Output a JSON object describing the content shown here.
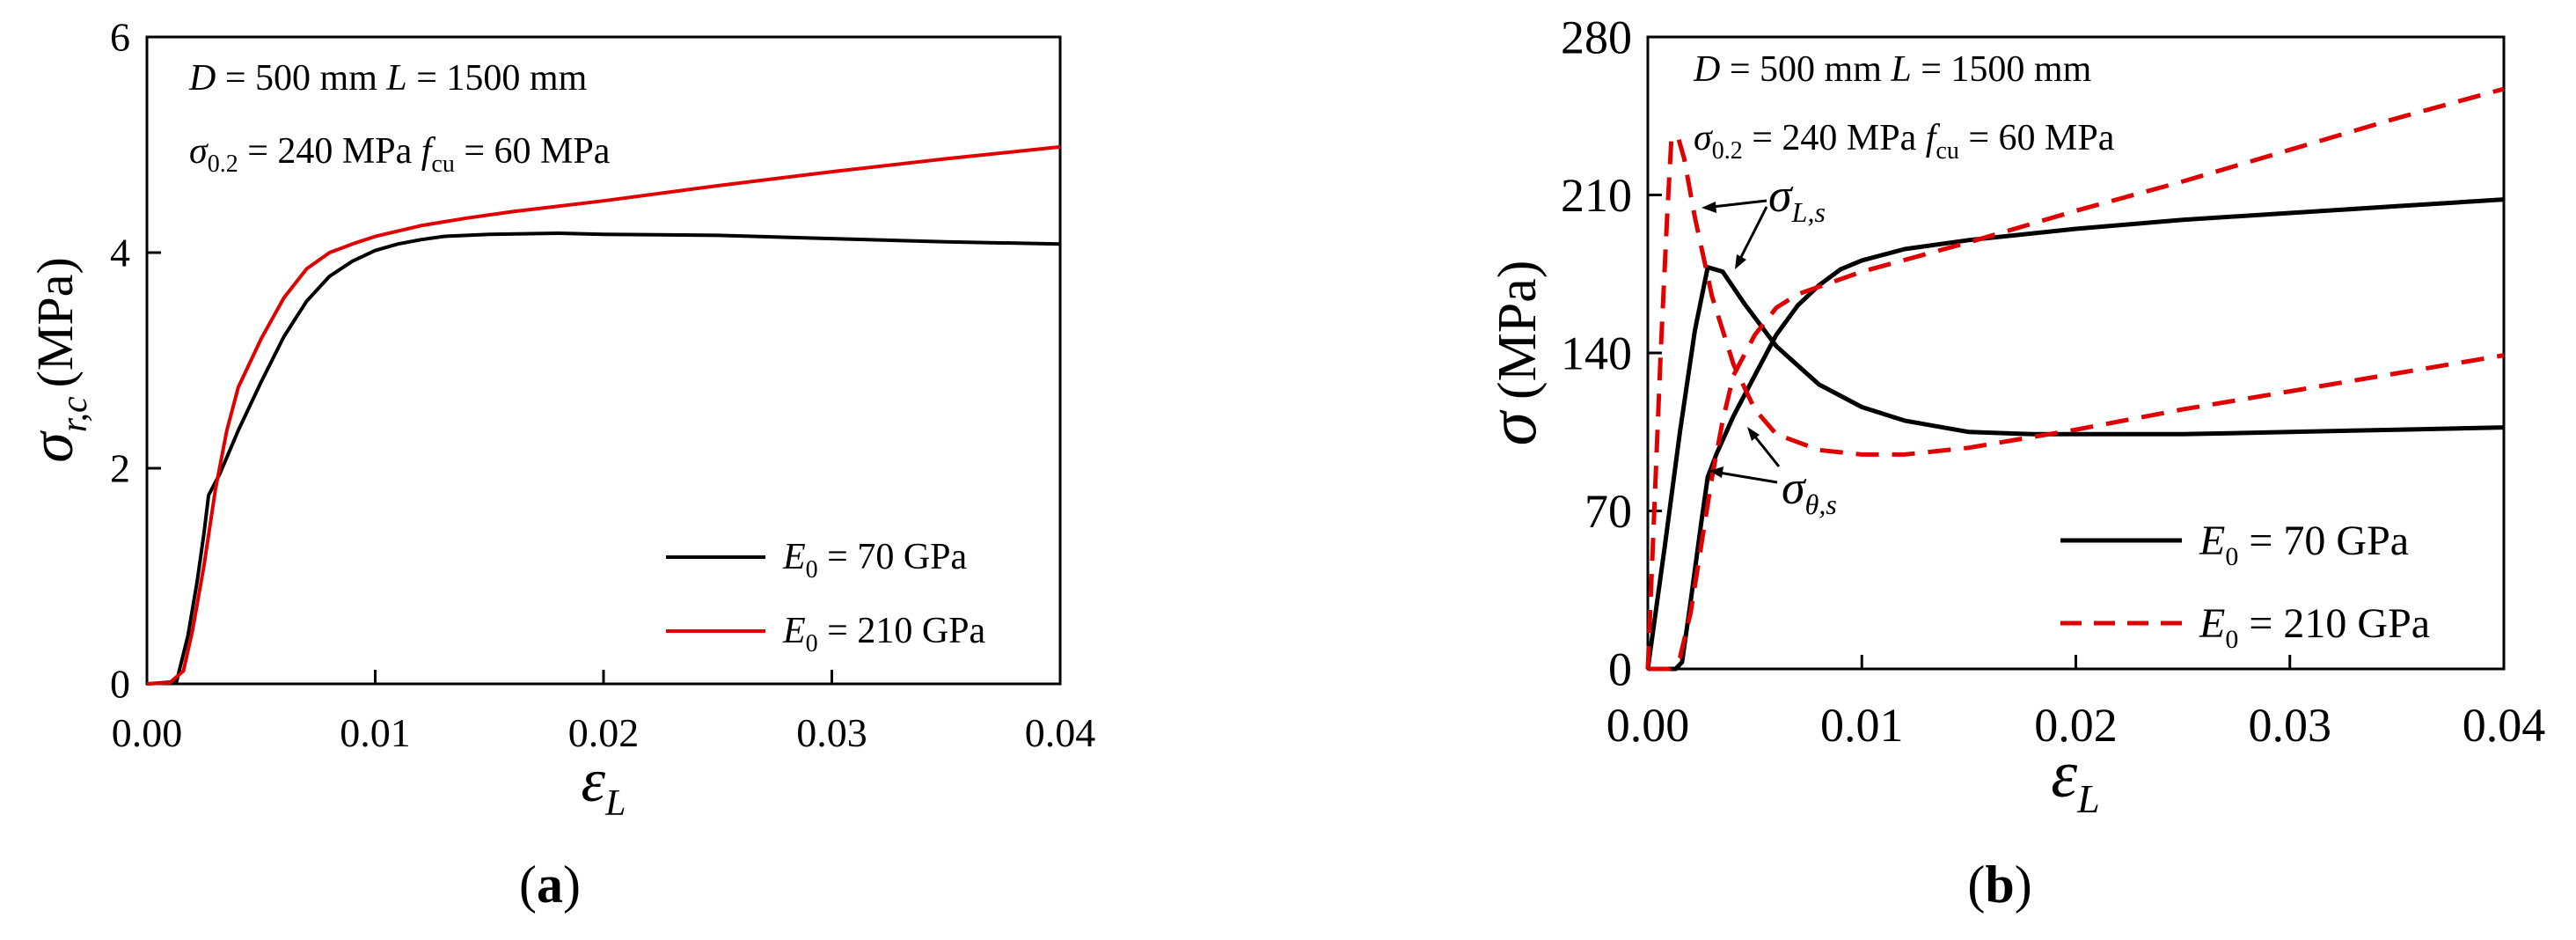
{
  "chart_data": [
    {
      "type": "line",
      "panel_label": "a",
      "xlim": [
        0.0,
        0.04
      ],
      "ylim": [
        0,
        6
      ],
      "x_ticks": [
        "0.00",
        "0.01",
        "0.02",
        "0.03",
        "0.04"
      ],
      "y_ticks": [
        "0",
        "2",
        "4",
        "6"
      ],
      "xlabel": {
        "main": "ε",
        "sub": "L"
      },
      "ylabel": {
        "main": "σ",
        "sub": "r,c",
        "unit": "(MPa)"
      },
      "annotations": {
        "line1": {
          "D": "D",
          "eq1": " = 500 mm ",
          "L": "L",
          "eq2": " = 1500 mm"
        },
        "line2": {
          "sigma": "σ",
          "sub": "0.2",
          "eq1": " = 240 MPa ",
          "f": "f",
          "fsub": "cu",
          "eq2": " = 60 MPa"
        }
      },
      "legend": {
        "position": "bottom-right"
      },
      "series": [
        {
          "name": "E0 = 70 GPa",
          "legend": {
            "sym": "E",
            "sub": "0",
            "rest": " = 70 GPa"
          },
          "color": "#000000",
          "dash": "solid",
          "points": [
            [
              0,
              0
            ],
            [
              0.0013,
              0.02
            ],
            [
              0.0018,
              0.45
            ],
            [
              0.0022,
              0.95
            ],
            [
              0.0025,
              1.4
            ],
            [
              0.0027,
              1.75
            ],
            [
              0.0032,
              1.95
            ],
            [
              0.004,
              2.35
            ],
            [
              0.005,
              2.8
            ],
            [
              0.006,
              3.22
            ],
            [
              0.007,
              3.55
            ],
            [
              0.008,
              3.78
            ],
            [
              0.009,
              3.92
            ],
            [
              0.01,
              4.02
            ],
            [
              0.011,
              4.08
            ],
            [
              0.012,
              4.12
            ],
            [
              0.013,
              4.15
            ],
            [
              0.015,
              4.17
            ],
            [
              0.018,
              4.18
            ],
            [
              0.02,
              4.17
            ],
            [
              0.025,
              4.16
            ],
            [
              0.03,
              4.13
            ],
            [
              0.035,
              4.1
            ],
            [
              0.04,
              4.08
            ]
          ]
        },
        {
          "name": "E0 = 210 GPa",
          "legend": {
            "sym": "E",
            "sub": "0",
            "rest": " = 210 GPa"
          },
          "color": "#e00000",
          "dash": "solid",
          "points": [
            [
              0,
              0
            ],
            [
              0.001,
              0.01
            ],
            [
              0.0016,
              0.12
            ],
            [
              0.002,
              0.5
            ],
            [
              0.0025,
              1.1
            ],
            [
              0.003,
              1.8
            ],
            [
              0.0035,
              2.35
            ],
            [
              0.004,
              2.75
            ],
            [
              0.005,
              3.2
            ],
            [
              0.006,
              3.58
            ],
            [
              0.007,
              3.85
            ],
            [
              0.008,
              4.0
            ],
            [
              0.009,
              4.08
            ],
            [
              0.01,
              4.15
            ],
            [
              0.012,
              4.25
            ],
            [
              0.014,
              4.32
            ],
            [
              0.016,
              4.38
            ],
            [
              0.02,
              4.48
            ],
            [
              0.025,
              4.62
            ],
            [
              0.03,
              4.75
            ],
            [
              0.035,
              4.87
            ],
            [
              0.04,
              4.98
            ]
          ]
        }
      ]
    },
    {
      "type": "line",
      "panel_label": "b",
      "xlim": [
        0.0,
        0.04
      ],
      "ylim": [
        0,
        280
      ],
      "x_ticks": [
        "0.00",
        "0.01",
        "0.02",
        "0.03",
        "0.04"
      ],
      "y_ticks": [
        "0",
        "70",
        "140",
        "210",
        "280"
      ],
      "xlabel": {
        "main": "ε",
        "sub": "L"
      },
      "ylabel": {
        "main": "σ",
        "sub": "",
        "unit": "(MPa)"
      },
      "annotations": {
        "line1": {
          "D": "D",
          "eq1": " = 500 mm ",
          "L": "L",
          "eq2": " = 1500 mm"
        },
        "line2": {
          "sigma": "σ",
          "sub": "0.2",
          "eq1": " = 240 MPa ",
          "f": "f",
          "fsub": "cu",
          "eq2": " = 60 MPa"
        },
        "sigma_L": {
          "sym": "σ",
          "sub": "L,s"
        },
        "sigma_theta": {
          "sym": "σ",
          "sub": "θ,s"
        }
      },
      "legend": {
        "position": "bottom-right"
      },
      "series": [
        {
          "name": "E0 = 70 GPa (σL,s)",
          "legend": {
            "sym": "E",
            "sub": "0",
            "rest": " = 70 GPa"
          },
          "color": "#000000",
          "dash": "solid",
          "points": [
            [
              0,
              0
            ],
            [
              0.0008,
              55
            ],
            [
              0.0015,
              105
            ],
            [
              0.0022,
              150
            ],
            [
              0.0028,
              178
            ],
            [
              0.0035,
              176
            ],
            [
              0.0045,
              162
            ],
            [
              0.006,
              143
            ],
            [
              0.008,
              126
            ],
            [
              0.01,
              116
            ],
            [
              0.012,
              110
            ],
            [
              0.015,
              105
            ],
            [
              0.018,
              104
            ],
            [
              0.02,
              104
            ],
            [
              0.025,
              104
            ],
            [
              0.03,
              105
            ],
            [
              0.035,
              106
            ],
            [
              0.04,
              107
            ]
          ]
        },
        {
          "name": "E0 = 70 GPa (σθ,s)",
          "color": "#000000",
          "dash": "solid",
          "points": [
            [
              0,
              0
            ],
            [
              0.0013,
              0
            ],
            [
              0.0016,
              3
            ],
            [
              0.002,
              30
            ],
            [
              0.0025,
              65
            ],
            [
              0.0028,
              85
            ],
            [
              0.0032,
              95
            ],
            [
              0.004,
              112
            ],
            [
              0.005,
              130
            ],
            [
              0.006,
              148
            ],
            [
              0.007,
              161
            ],
            [
              0.008,
              170
            ],
            [
              0.009,
              177
            ],
            [
              0.01,
              181
            ],
            [
              0.012,
              186
            ],
            [
              0.015,
              190
            ],
            [
              0.02,
              195
            ],
            [
              0.025,
              199
            ],
            [
              0.03,
              202
            ],
            [
              0.035,
              205
            ],
            [
              0.04,
              208
            ]
          ]
        },
        {
          "name": "E0 = 210 GPa (σL,s)",
          "legend": {
            "sym": "E",
            "sub": "0",
            "rest": " = 210 GPa"
          },
          "color": "#e00000",
          "dash": "dashed",
          "points": [
            [
              0,
              0
            ],
            [
              0.0003,
              70
            ],
            [
              0.0006,
              140
            ],
            [
              0.0009,
              200
            ],
            [
              0.0011,
              235
            ],
            [
              0.0014,
              236
            ],
            [
              0.0017,
              226
            ],
            [
              0.0022,
              200
            ],
            [
              0.003,
              165
            ],
            [
              0.004,
              135
            ],
            [
              0.005,
              115
            ],
            [
              0.006,
              104
            ],
            [
              0.008,
              97
            ],
            [
              0.01,
              95
            ],
            [
              0.012,
              95
            ],
            [
              0.015,
              98
            ],
            [
              0.02,
              106
            ],
            [
              0.025,
              115
            ],
            [
              0.03,
              123
            ],
            [
              0.035,
              131
            ],
            [
              0.04,
              139
            ]
          ]
        },
        {
          "name": "E0 = 210 GPa (σθ,s)",
          "color": "#e00000",
          "dash": "dashed",
          "points": [
            [
              0,
              0
            ],
            [
              0.001,
              0
            ],
            [
              0.0015,
              5
            ],
            [
              0.002,
              25
            ],
            [
              0.0025,
              55
            ],
            [
              0.003,
              85
            ],
            [
              0.0035,
              110
            ],
            [
              0.004,
              130
            ],
            [
              0.005,
              148
            ],
            [
              0.006,
              160
            ],
            [
              0.007,
              166
            ],
            [
              0.01,
              176
            ],
            [
              0.015,
              189
            ],
            [
              0.02,
              203
            ],
            [
              0.025,
              216
            ],
            [
              0.03,
              230
            ],
            [
              0.035,
              244
            ],
            [
              0.04,
              257
            ]
          ]
        }
      ]
    }
  ]
}
